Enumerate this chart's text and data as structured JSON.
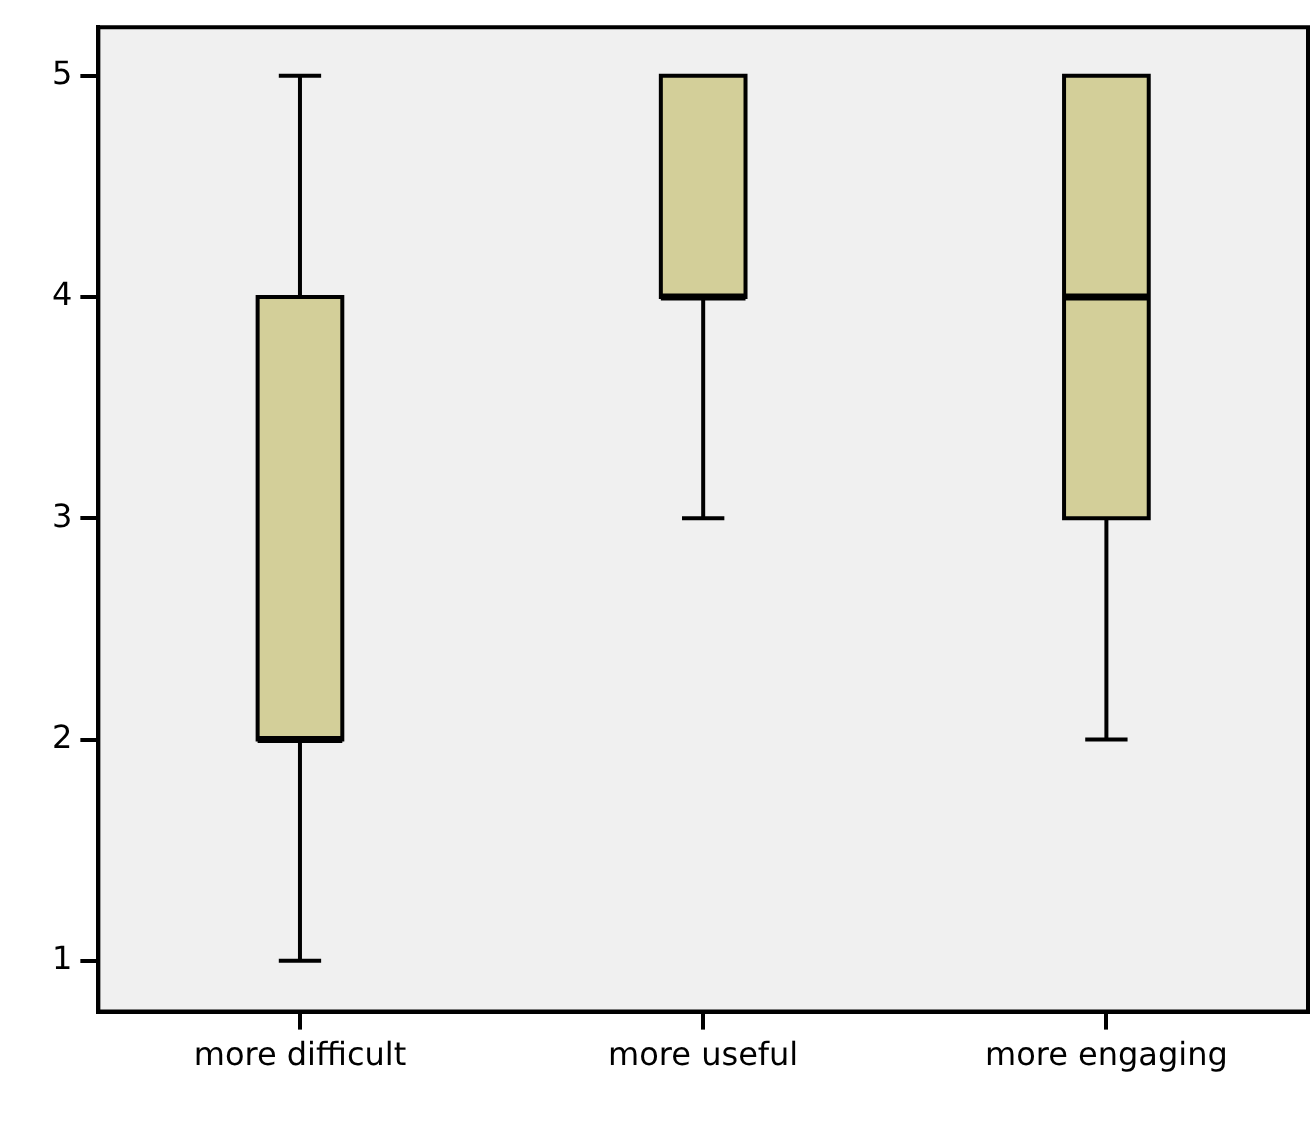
{
  "chart_data": {
    "type": "box",
    "categories": [
      "more difficult",
      "more useful",
      "more engaging"
    ],
    "boxes": [
      {
        "low": 1,
        "q1": 2,
        "median": 2,
        "q3": 4,
        "high": 5
      },
      {
        "low": 3,
        "q1": 4,
        "median": 4,
        "q3": 5,
        "high": 5
      },
      {
        "low": 2,
        "q1": 3,
        "median": 4,
        "q3": 5,
        "high": 5
      }
    ],
    "color": "#d3cf99",
    "ylim": [
      0.77,
      5.22
    ],
    "yticks": [
      1,
      2,
      3,
      4,
      5
    ],
    "grid": false,
    "legend": false
  }
}
